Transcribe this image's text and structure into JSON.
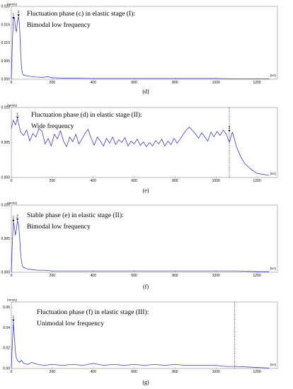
{
  "chart_data": [
    {
      "type": "line",
      "caption": "(d)",
      "unit_y": "(mm/s)",
      "unit_x": "(Hz)",
      "annotation": [
        "Fluctuation phase (c) in elastic stage (I):",
        "Bimodal low frequency"
      ],
      "ylim": [
        0,
        0.02
      ],
      "yticks": [
        "0.000",
        "0.005",
        "0.010",
        "0.015",
        "0.020"
      ],
      "xlim": [
        0,
        1300
      ],
      "xticks": [
        "0",
        "200",
        "400",
        "600",
        "800",
        "1000",
        "1200"
      ],
      "x": [
        0,
        5,
        10,
        15,
        20,
        25,
        30,
        35,
        40,
        45,
        50,
        55,
        60,
        70,
        80,
        100,
        120,
        150,
        180,
        200,
        250,
        300,
        400,
        500,
        600,
        700,
        800,
        900,
        1000,
        1100,
        1200,
        1260
      ],
      "y": [
        0.0,
        0.01,
        0.0165,
        0.017,
        0.014,
        0.013,
        0.016,
        0.0172,
        0.015,
        0.008,
        0.003,
        0.0015,
        0.0011,
        0.001,
        0.0009,
        0.0007,
        0.0006,
        0.0005,
        0.0007,
        0.0004,
        0.0003,
        0.0003,
        0.0002,
        0.0002,
        0.0002,
        0.0002,
        0.0002,
        0.0002,
        0.0002,
        0.0001,
        0.0001,
        0.0001
      ],
      "peaks": [
        {
          "label": "1",
          "x": 10,
          "y": 0.0165
        },
        {
          "label": "2",
          "x": 35,
          "y": 0.0172
        }
      ],
      "cutoff": null
    },
    {
      "type": "line",
      "caption": "(e)",
      "unit_y": "(mm/s)",
      "unit_x": "(Hz)",
      "annotation": [
        "Fluctuation phase (d) in elastic stage (II):",
        "Wide frequency"
      ],
      "ylim": [
        0,
        0.01
      ],
      "yticks": [
        "0.000",
        "0.005",
        "0.010"
      ],
      "xlim": [
        0,
        1300
      ],
      "xticks": [
        "0",
        "200",
        "400",
        "600",
        "800",
        "1000",
        "1200"
      ],
      "x": [
        0,
        10,
        20,
        30,
        45,
        60,
        75,
        90,
        105,
        120,
        135,
        150,
        165,
        180,
        195,
        210,
        225,
        240,
        255,
        270,
        285,
        300,
        315,
        330,
        345,
        360,
        375,
        390,
        405,
        420,
        435,
        450,
        465,
        480,
        495,
        510,
        525,
        540,
        555,
        570,
        585,
        600,
        615,
        630,
        645,
        660,
        675,
        690,
        705,
        720,
        735,
        750,
        765,
        780,
        795,
        810,
        825,
        840,
        855,
        870,
        885,
        900,
        915,
        930,
        945,
        960,
        975,
        990,
        1005,
        1020,
        1035,
        1050,
        1065,
        1080,
        1100,
        1120,
        1140,
        1170,
        1200,
        1260
      ],
      "y": [
        0.007,
        0.0082,
        0.0075,
        0.0084,
        0.0065,
        0.006,
        0.0068,
        0.0052,
        0.0063,
        0.0058,
        0.007,
        0.0066,
        0.0048,
        0.0056,
        0.0045,
        0.0062,
        0.0055,
        0.0067,
        0.0052,
        0.0044,
        0.0058,
        0.0051,
        0.0062,
        0.0048,
        0.0055,
        0.0063,
        0.0069,
        0.0056,
        0.0046,
        0.0058,
        0.0052,
        0.0045,
        0.0056,
        0.0049,
        0.0058,
        0.0047,
        0.0054,
        0.005,
        0.0057,
        0.0045,
        0.0052,
        0.0048,
        0.0055,
        0.0046,
        0.0051,
        0.0044,
        0.005,
        0.0045,
        0.0053,
        0.0048,
        0.0055,
        0.0045,
        0.0052,
        0.0047,
        0.0056,
        0.0049,
        0.0055,
        0.0062,
        0.0068,
        0.0072,
        0.0067,
        0.0062,
        0.0056,
        0.0064,
        0.0058,
        0.0052,
        0.0065,
        0.0058,
        0.0066,
        0.006,
        0.0068,
        0.0062,
        0.005,
        0.0065,
        0.0044,
        0.003,
        0.002,
        0.0012,
        0.0006,
        0.0003
      ],
      "peaks": [
        {
          "label": "1",
          "x": 30,
          "y": 0.0084
        },
        {
          "label": "2",
          "x": 1065,
          "y": 0.0065
        }
      ],
      "cutoff": 1065
    },
    {
      "type": "line",
      "caption": "(f)",
      "unit_y": "(mm/s)",
      "unit_x": "(Hz)",
      "annotation": [
        "Stable phase (e) in elastic stage (II):",
        "Bimodal low frequency"
      ],
      "ylim": [
        0,
        0.01
      ],
      "yticks": [
        "0.000",
        "0.005",
        "0.010"
      ],
      "xlim": [
        0,
        1300
      ],
      "xticks": [
        "0",
        "200",
        "400",
        "600",
        "800",
        "1000",
        "1200"
      ],
      "x": [
        0,
        5,
        10,
        15,
        20,
        25,
        30,
        35,
        40,
        45,
        50,
        55,
        60,
        70,
        80,
        100,
        130,
        160,
        200,
        300,
        400,
        500,
        600,
        700,
        800,
        900,
        1000,
        1100,
        1200,
        1260
      ],
      "y": [
        0.0,
        0.0045,
        0.0075,
        0.0068,
        0.0055,
        0.0064,
        0.0077,
        0.0072,
        0.0055,
        0.003,
        0.0015,
        0.0009,
        0.0007,
        0.0006,
        0.0005,
        0.0004,
        0.0003,
        0.0003,
        0.0002,
        0.0002,
        0.0002,
        0.0002,
        0.0002,
        0.0002,
        0.0002,
        0.0002,
        0.0002,
        0.0002,
        0.0001,
        0.0001
      ],
      "peaks": [
        {
          "label": "1",
          "x": 10,
          "y": 0.0075
        },
        {
          "label": "2",
          "x": 30,
          "y": 0.0077
        }
      ],
      "cutoff": null
    },
    {
      "type": "line",
      "caption": "(g)",
      "unit_y": "(mm/s)",
      "unit_x": "(Hz)",
      "annotation": [
        "Fluctuation phase (f) in elastic stage (III):",
        "Unimodal low frequency"
      ],
      "ylim": [
        0,
        0.065
      ],
      "yticks": [
        "0.00",
        "0.02",
        "0.04",
        "0.06"
      ],
      "xlim": [
        0,
        1300
      ],
      "xticks": [
        "0",
        "200",
        "400",
        "600",
        "800",
        "1000",
        "1200"
      ],
      "x": [
        0,
        5,
        10,
        15,
        20,
        25,
        30,
        40,
        50,
        60,
        80,
        100,
        130,
        160,
        200,
        250,
        300,
        350,
        400,
        450,
        500,
        550,
        600,
        650,
        700,
        750,
        800,
        850,
        900,
        950,
        1000,
        1050,
        1100,
        1150,
        1200,
        1260
      ],
      "y": [
        0.0,
        0.025,
        0.046,
        0.03,
        0.016,
        0.01,
        0.008,
        0.006,
        0.008,
        0.005,
        0.004,
        0.006,
        0.004,
        0.003,
        0.004,
        0.003,
        0.004,
        0.003,
        0.005,
        0.003,
        0.004,
        0.003,
        0.004,
        0.003,
        0.004,
        0.003,
        0.004,
        0.003,
        0.003,
        0.003,
        0.003,
        0.002,
        0.002,
        0.0015,
        0.001,
        0.0005
      ],
      "peaks": [
        {
          "label": "1",
          "x": 10,
          "y": 0.046
        }
      ],
      "cutoff": 1090
    }
  ],
  "style": {
    "line_color": "#3b3bd9",
    "axis_color": "#8a8a8a",
    "cutoff_color": "#000000"
  }
}
